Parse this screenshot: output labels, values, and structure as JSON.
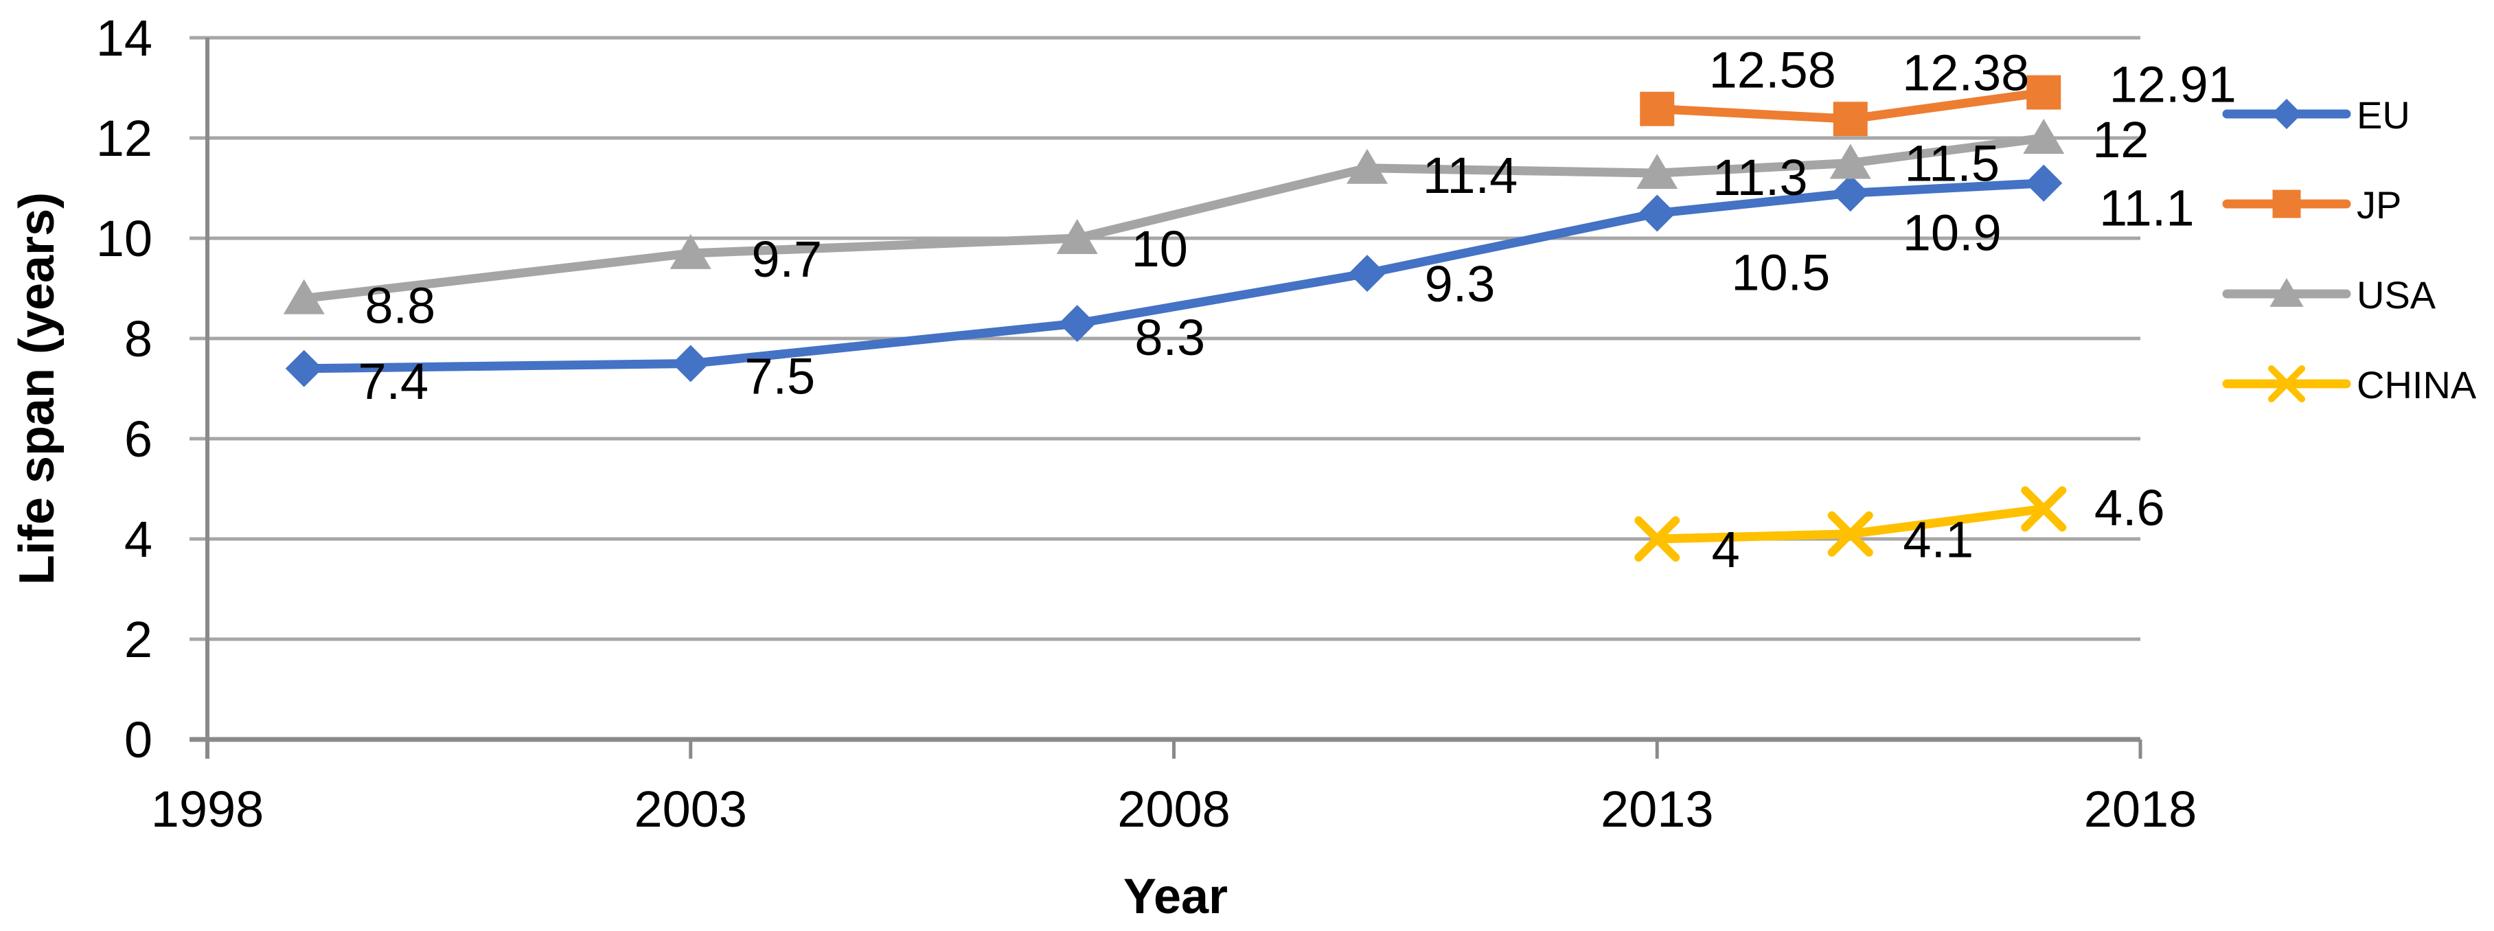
{
  "chart_data": {
    "type": "line",
    "title": "",
    "xlabel": "Year",
    "ylabel": "Life span (years)",
    "xlim": [
      1998,
      2018
    ],
    "ylim": [
      0,
      14
    ],
    "x_ticks": [
      1998,
      2003,
      2008,
      2013,
      2018
    ],
    "y_ticks": [
      0,
      2,
      4,
      6,
      8,
      10,
      12,
      14
    ],
    "grid": true,
    "legend_position": "right",
    "style": {
      "grid_color": "#a6a6a6",
      "axis_color": "#8a8a8a",
      "label_color": "#000000",
      "background": "#ffffff"
    },
    "series": [
      {
        "name": "EU",
        "color": "#4472C4",
        "marker": "diamond",
        "x": [
          1999,
          2003,
          2007,
          2010,
          2013,
          2015,
          2017
        ],
        "values": [
          7.4,
          7.5,
          8.3,
          9.3,
          10.5,
          10.9,
          11.1
        ],
        "labels": [
          "7.4",
          "7.5",
          "8.3",
          "9.3",
          "10.5",
          "10.9",
          "11.1"
        ],
        "label_offsets": [
          [
            130,
            18
          ],
          [
            130,
            18
          ],
          [
            135,
            20
          ],
          [
            135,
            15
          ],
          [
            180,
            86
          ],
          [
            148,
            57
          ],
          [
            150,
            36
          ]
        ]
      },
      {
        "name": "JP",
        "color": "#ED7D31",
        "marker": "square",
        "x": [
          2013,
          2015,
          2017
        ],
        "values": [
          12.58,
          12.38,
          12.91
        ],
        "labels": [
          "12.58",
          "12.38",
          "12.91"
        ],
        "label_offsets": [
          [
            168,
            -57
          ],
          [
            168,
            -68
          ],
          [
            188,
            -12
          ]
        ]
      },
      {
        "name": "USA",
        "color": "#A5A5A5",
        "marker": "triangle",
        "x": [
          1999,
          2003,
          2007,
          2010,
          2013,
          2015,
          2017
        ],
        "values": [
          8.8,
          9.7,
          10,
          11.4,
          11.3,
          11.5,
          12
        ],
        "labels": [
          "8.8",
          "9.7",
          "10",
          "11.4",
          "11.3",
          "11.5",
          "12"
        ],
        "label_offsets": [
          [
            140,
            10
          ],
          [
            140,
            8
          ],
          [
            120,
            15
          ],
          [
            150,
            10
          ],
          [
            150,
            6
          ],
          [
            148,
            0
          ],
          [
            112,
            2
          ]
        ]
      },
      {
        "name": "CHINA",
        "color": "#FFC000",
        "marker": "x",
        "x": [
          2013,
          2015,
          2017
        ],
        "values": [
          4,
          4.1,
          4.6
        ],
        "labels": [
          "4",
          "4.1",
          "4.6"
        ],
        "label_offsets": [
          [
            100,
            15
          ],
          [
            128,
            8
          ],
          [
            125,
            -2
          ]
        ]
      }
    ],
    "legend": [
      "EU",
      "JP",
      "USA",
      "CHINA"
    ]
  }
}
